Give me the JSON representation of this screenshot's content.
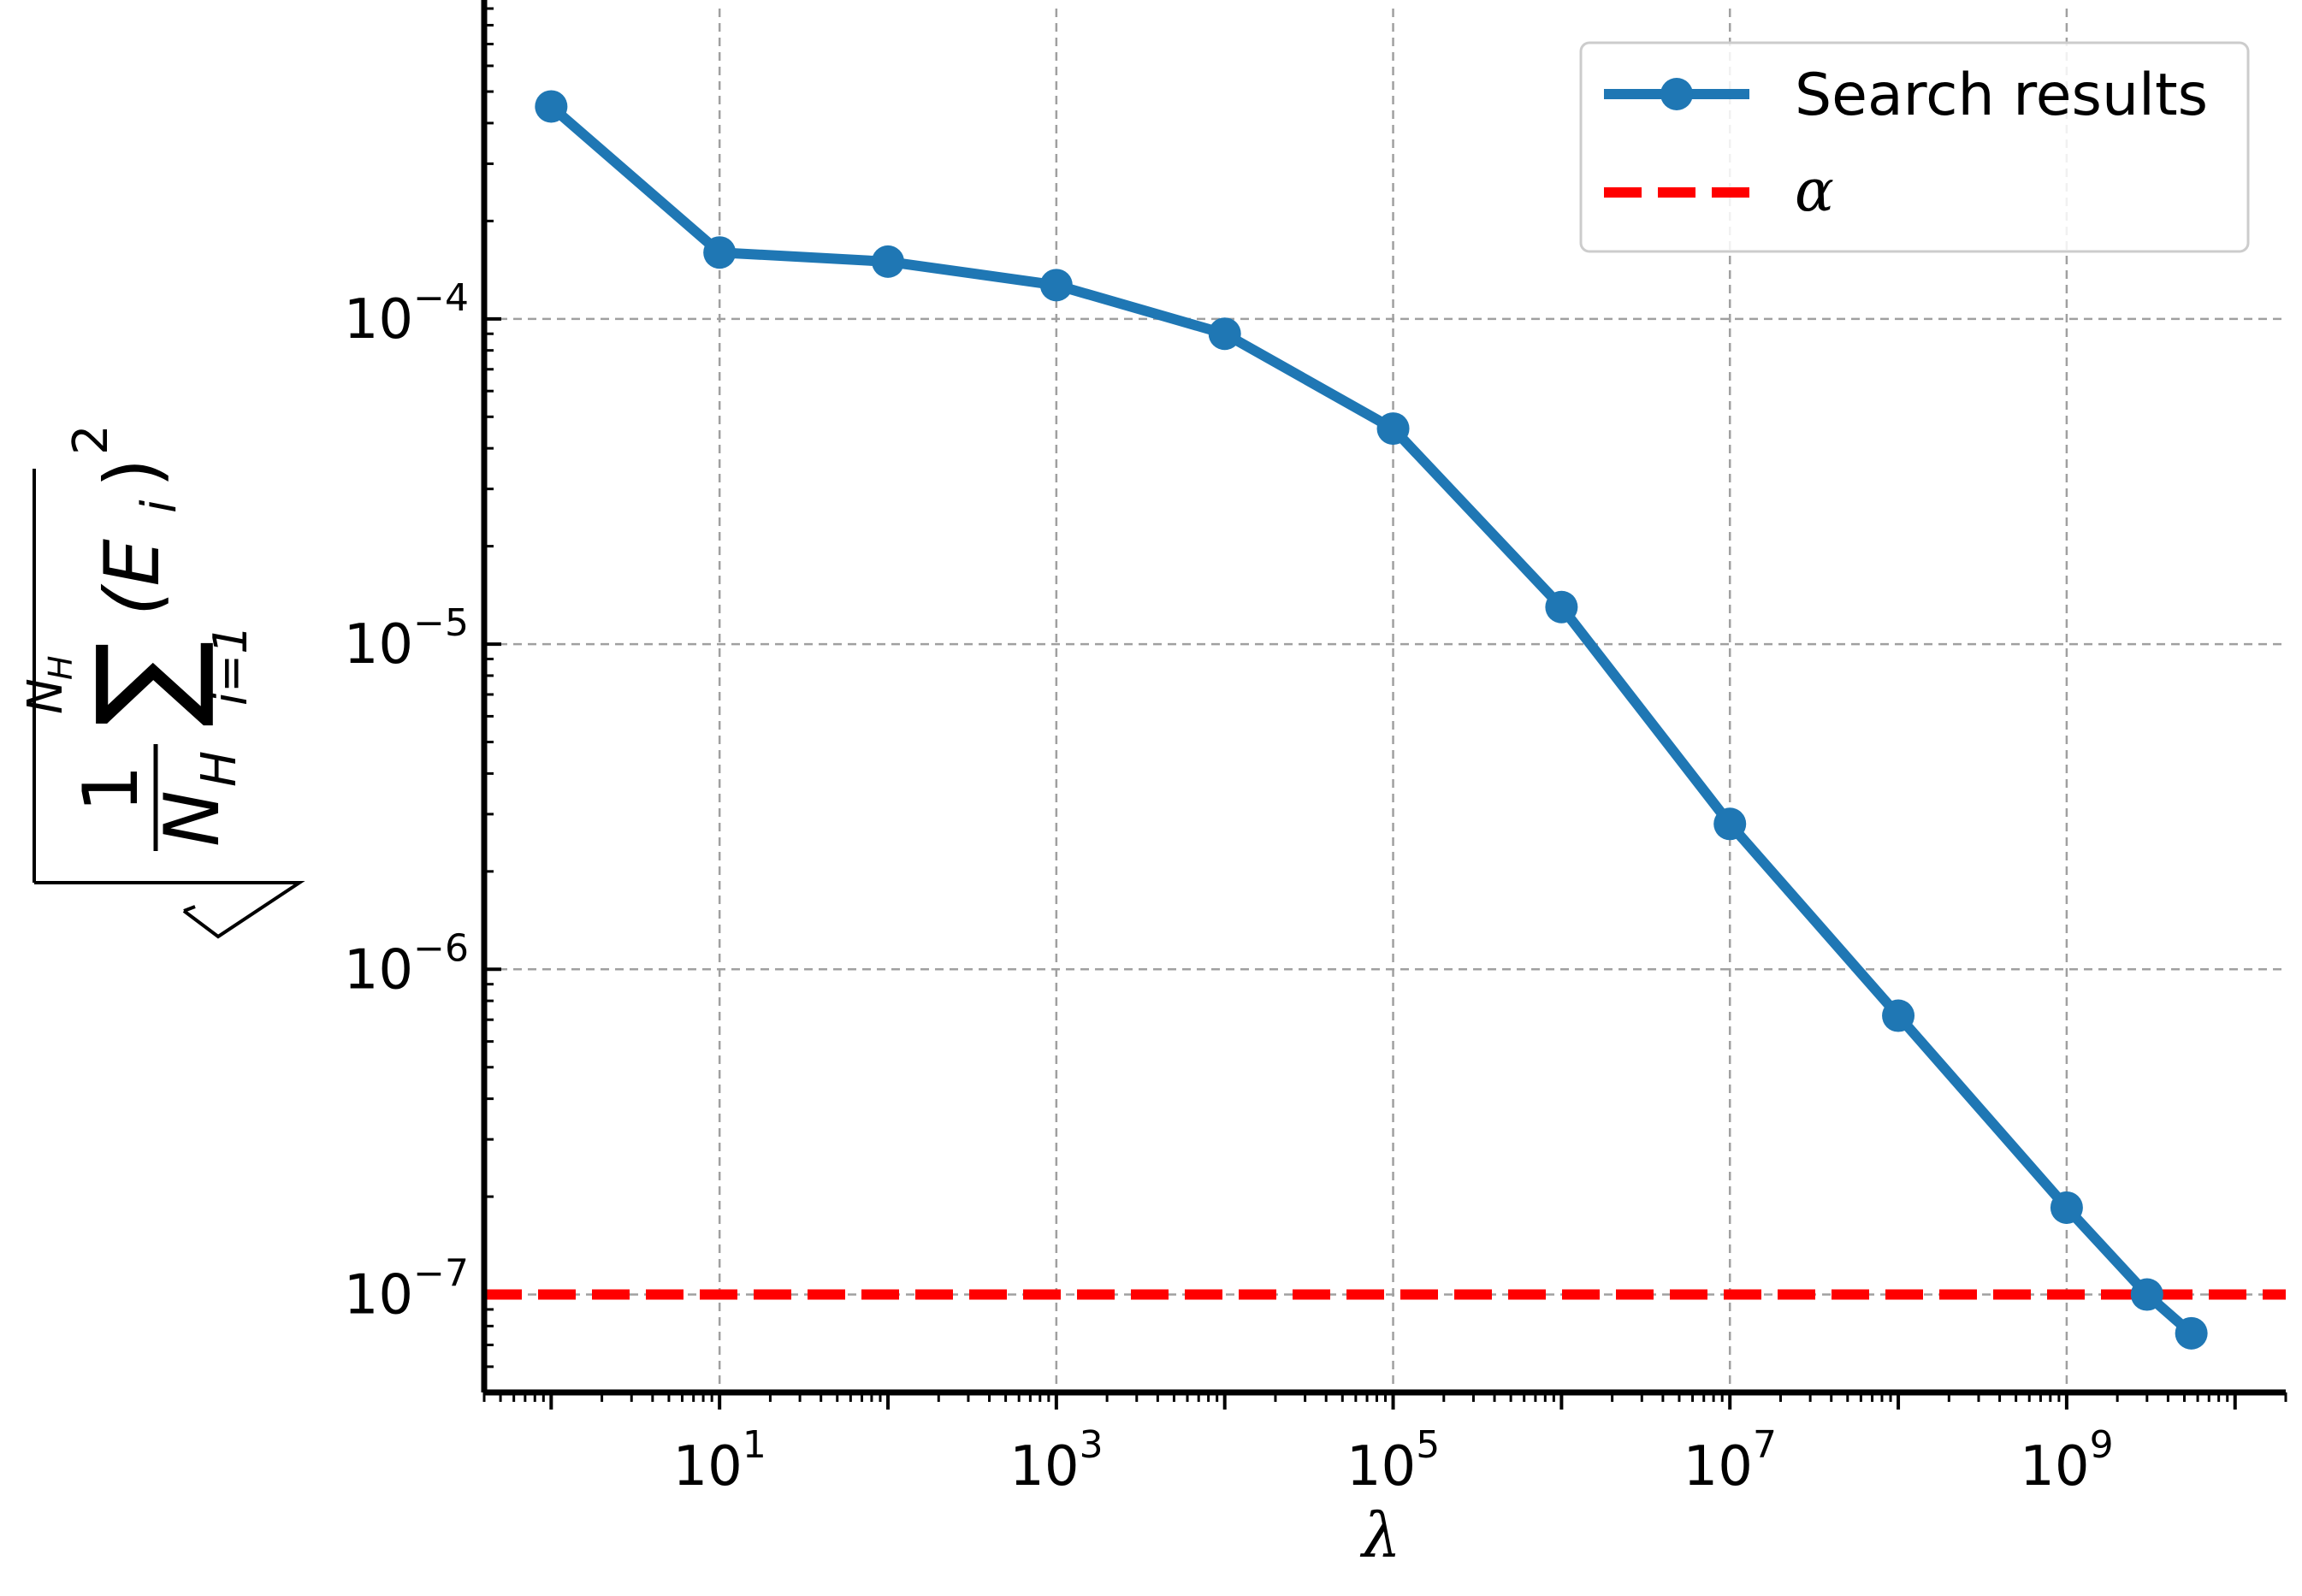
{
  "chart_data": {
    "type": "line",
    "xscale": "log",
    "yscale": "log",
    "xlabel": "λ",
    "ylabel": {
      "frac_numerator": "1",
      "frac_denominator": "N",
      "frac_denominator_sub": "H",
      "sum_upper": "N",
      "sum_upper_sub": "H",
      "sum_symbol": "∑",
      "sum_lower": "i=1",
      "term": "(E",
      "term_sub": "i",
      "term_close": ")",
      "term_sup": "2"
    },
    "xlim": [
      0.4,
      20000000000
    ],
    "ylim": [
      5e-08,
      0.0009
    ],
    "grid": true,
    "legend_position": "top-right",
    "x_ticks": [
      {
        "value": 10,
        "base": "10",
        "exp": "1"
      },
      {
        "value": 1000,
        "base": "10",
        "exp": "3"
      },
      {
        "value": 100000,
        "base": "10",
        "exp": "5"
      },
      {
        "value": 10000000,
        "base": "10",
        "exp": "7"
      },
      {
        "value": 1000000000,
        "base": "10",
        "exp": "9"
      }
    ],
    "y_ticks": [
      {
        "value": 0.0001,
        "base": "10",
        "exp": "−4"
      },
      {
        "value": 1e-05,
        "base": "10",
        "exp": "−5"
      },
      {
        "value": 1e-06,
        "base": "10",
        "exp": "−6"
      },
      {
        "value": 1e-07,
        "base": "10",
        "exp": "−7"
      }
    ],
    "series": [
      {
        "name": "Search results",
        "color": "#1f77b4",
        "marker": "circle",
        "x": [
          1,
          10,
          100,
          1000,
          10000,
          100000,
          1000000,
          10000000,
          100000000,
          1000000000,
          3000000000,
          5500000000
        ],
        "y": [
          0.00045,
          0.00016,
          0.00015,
          0.000127,
          9e-05,
          4.6e-05,
          1.3e-05,
          2.8e-06,
          7.2e-07,
          1.85e-07,
          1e-07,
          7.6e-08
        ]
      }
    ],
    "reference_lines": [
      {
        "name": "α",
        "orientation": "horizontal",
        "y": 1e-07,
        "color": "#ff0000",
        "style": "dashed"
      }
    ]
  }
}
